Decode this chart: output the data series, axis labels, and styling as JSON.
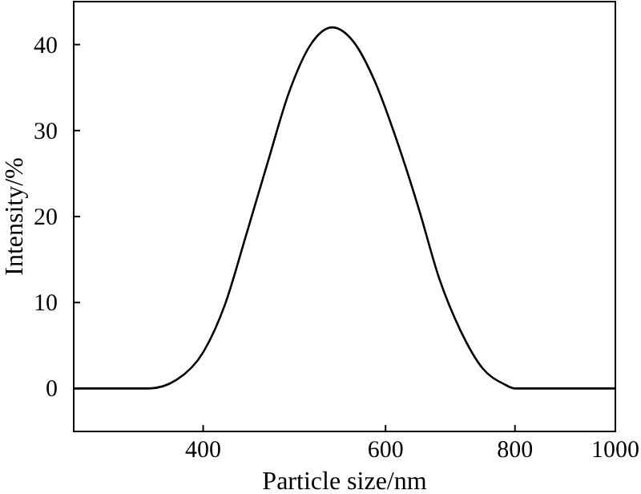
{
  "chart_data": {
    "type": "line",
    "xlabel": "Particle size/nm",
    "ylabel": "Intensity/%",
    "log": "x",
    "xlim": [
      300,
      1000
    ],
    "xticks": [
      400,
      600,
      800,
      1000
    ],
    "ylim": [
      -5,
      45
    ],
    "yticks": [
      0,
      10,
      20,
      30,
      40
    ],
    "marker": "none",
    "line_style": "solid",
    "series": [
      {
        "color": "#000000",
        "x": [
          300,
          355,
          377,
          400,
          420,
          440,
          462,
          484,
          508,
          533,
          559,
          586,
          615,
          646,
          676,
          709,
          745,
          781,
          800,
          1000
        ],
        "values": [
          0,
          0,
          1,
          4.2,
          9.8,
          17.8,
          26.4,
          34.4,
          40,
          42,
          40.3,
          35.7,
          28.9,
          20.9,
          12.8,
          6.7,
          2.3,
          0.5,
          0,
          0
        ]
      }
    ]
  }
}
